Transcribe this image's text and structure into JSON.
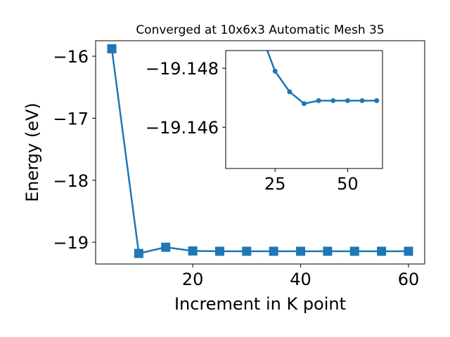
{
  "chart_data": [
    {
      "type": "line",
      "title": "Converged at 10x6x3 Automatic Mesh 35",
      "xlabel": "Increment in K point",
      "ylabel": "Energy (eV)",
      "xlim": [
        2,
        63
      ],
      "ylim": [
        -19.35,
        -15.75
      ],
      "xticks": [
        20,
        40,
        60
      ],
      "yticks": [
        -16,
        -17,
        -18,
        -19
      ],
      "xtick_labels": [
        "20",
        "40",
        "60"
      ],
      "ytick_labels": [
        "−16",
        "−17",
        "−18",
        "−19"
      ],
      "marker": "square",
      "color": "#1f77b4",
      "grid": false,
      "series": [
        {
          "x": [
            5,
            10,
            15,
            20,
            25,
            30,
            35,
            40,
            45,
            50,
            55,
            60
          ],
          "y": [
            -15.88,
            -19.18,
            -19.08,
            -19.14,
            -19.145,
            -19.145,
            -19.145,
            -19.145,
            -19.145,
            -19.145,
            -19.145,
            -19.145
          ]
        }
      ]
    },
    {
      "type": "line",
      "title": "",
      "xlabel": "",
      "ylabel": "",
      "xlim": [
        8,
        62
      ],
      "ylim": [
        -19.1446,
        -19.1486
      ],
      "xticks": [
        25,
        50
      ],
      "yticks": [
        -19.148,
        -19.146
      ],
      "xtick_labels": [
        "25",
        "50"
      ],
      "ytick_labels": [
        "−19.148",
        "−19.146"
      ],
      "marker": "circle",
      "color": "#1f77b4",
      "grid": false,
      "series": [
        {
          "x": [
            20,
            25,
            30,
            35,
            40,
            45,
            50,
            55,
            60
          ],
          "y": [
            -19.1492,
            -19.1479,
            -19.1472,
            -19.1468,
            -19.1469,
            -19.1469,
            -19.1469,
            -19.1469,
            -19.1469
          ]
        }
      ]
    }
  ]
}
